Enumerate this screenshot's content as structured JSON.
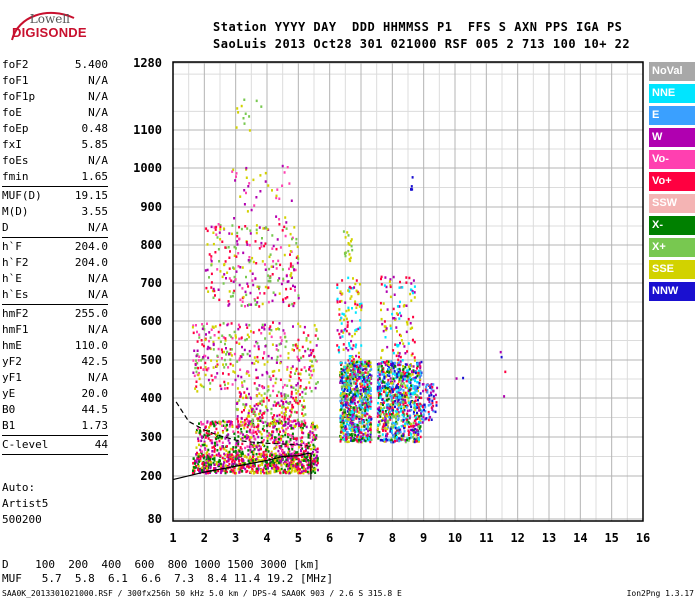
{
  "logo": {
    "line1": "Lowell",
    "line2": "DIGISONDE"
  },
  "header": {
    "line1": "Station YYYY DAY  DDD HHMMSS P1  FFS S AXN PPS IGA PS",
    "line2": "SaoLuis 2013 Oct28 301 021000 RSF 005 2 713 100 10+ 22"
  },
  "params": [
    [
      [
        "foF2",
        "5.400"
      ],
      [
        "foF1",
        "N/A"
      ],
      [
        "foF1p",
        "N/A"
      ],
      [
        "foE",
        "N/A"
      ],
      [
        "foEp",
        "0.48"
      ],
      [
        "fxI",
        "5.85"
      ],
      [
        "foEs",
        "N/A"
      ],
      [
        "fmin",
        "1.65"
      ]
    ],
    [
      [
        "MUF(D)",
        "19.15"
      ],
      [
        "M(D)",
        "3.55"
      ],
      [
        "D",
        "N/A"
      ]
    ],
    [
      [
        "h`F",
        "204.0"
      ],
      [
        "h`F2",
        "204.0"
      ],
      [
        "h`E",
        "N/A"
      ],
      [
        "h`Es",
        "N/A"
      ]
    ],
    [
      [
        "hmF2",
        "255.0"
      ],
      [
        "hmF1",
        "N/A"
      ],
      [
        "hmE",
        "110.0"
      ],
      [
        "yF2",
        "42.5"
      ],
      [
        "yF1",
        "N/A"
      ],
      [
        "yE",
        "20.0"
      ],
      [
        "B0",
        "44.5"
      ],
      [
        "B1",
        "1.73"
      ]
    ],
    [
      [
        "C-level",
        "44"
      ]
    ]
  ],
  "auto": {
    "l1": "Auto:",
    "l2": "Artist5",
    "l3": "500200"
  },
  "legend": [
    {
      "label": "NoVal",
      "color": "#a8a8a8"
    },
    {
      "label": "NNE",
      "color": "#00e5ff"
    },
    {
      "label": "E",
      "color": "#3aa0ff"
    },
    {
      "label": "W",
      "color": "#b000b0"
    },
    {
      "label": "Vo-",
      "color": "#ff40b0"
    },
    {
      "label": "Vo+",
      "color": "#ff0040"
    },
    {
      "label": "SSW",
      "color": "#f4b4b4"
    },
    {
      "label": "X-",
      "color": "#008000"
    },
    {
      "label": "X+",
      "color": "#78c850"
    },
    {
      "label": "SSE",
      "color": "#d2d200"
    },
    {
      "label": "NNW",
      "color": "#1a10d0"
    }
  ],
  "bottom": {
    "d_row": "D    100  200  400  600  800 1000 1500 3000 [km]",
    "muf_row": "MUF   5.7  5.8  6.1  6.6  7.3  8.4 11.4 19.2 [MHz]"
  },
  "footer": {
    "left": "SAA0K_2013301021000.RSF / 300fx256h 50 kHz 5.0 km / DPS-4 SAA0K 903 / 2.6 S 315.8 E",
    "right": "Ion2Png 1.3.17"
  },
  "chart_data": {
    "type": "scatter",
    "x_ticks": [
      1,
      2,
      3,
      4,
      5,
      6,
      7,
      8,
      9,
      10,
      11,
      12,
      13,
      14,
      15,
      16
    ],
    "y_ticks": [
      80,
      200,
      300,
      400,
      500,
      600,
      700,
      800,
      900,
      1000,
      1100,
      1280
    ],
    "xlim": [
      1,
      16
    ],
    "ylim": [
      80,
      1280
    ],
    "grid": true,
    "trace_curve": {
      "x": [
        1.0,
        2.0,
        3.0,
        4.0,
        4.5,
        5.0,
        5.3,
        5.4,
        5.4
      ],
      "y": [
        190,
        210,
        225,
        240,
        250,
        252,
        258,
        258,
        190
      ]
    },
    "profile_curve": {
      "x": [
        1.1,
        1.5,
        2.0,
        2.5,
        3.0,
        3.5,
        4.0,
        4.5,
        5.0,
        5.4
      ],
      "y": [
        390,
        340,
        318,
        303,
        292,
        287,
        284,
        282,
        280,
        276
      ]
    },
    "echo_clusters": [
      {
        "x": [
          1.6,
          5.6
        ],
        "y": [
          210,
          260
        ],
        "n": 700,
        "colors": [
          "#ff0040",
          "#008000",
          "#d2d200",
          "#b000b0"
        ]
      },
      {
        "x": [
          1.7,
          5.6
        ],
        "y": [
          255,
          345
        ],
        "n": 550,
        "colors": [
          "#ff40b0",
          "#ff0040",
          "#b000b0",
          "#d2d200",
          "#008000"
        ]
      },
      {
        "x": [
          3.0,
          5.2
        ],
        "y": [
          330,
          420
        ],
        "n": 220,
        "colors": [
          "#ff0040",
          "#b000b0",
          "#d2d200",
          "#78c850"
        ]
      },
      {
        "x": [
          1.6,
          5.6
        ],
        "y": [
          420,
          600
        ],
        "n": 380,
        "colors": [
          "#ff0040",
          "#b000b0",
          "#ff40b0",
          "#d2d200",
          "#78c850"
        ]
      },
      {
        "x": [
          2.0,
          5.0
        ],
        "y": [
          640,
          860
        ],
        "n": 260,
        "colors": [
          "#ff0040",
          "#b000b0",
          "#ff40b0",
          "#d2d200",
          "#78c850"
        ]
      },
      {
        "x": [
          2.8,
          4.8
        ],
        "y": [
          860,
          1010
        ],
        "n": 40,
        "colors": [
          "#d2d200",
          "#ff40b0",
          "#b000b0"
        ]
      },
      {
        "x": [
          2.9,
          3.8
        ],
        "y": [
          1080,
          1200
        ],
        "n": 12,
        "colors": [
          "#d2d200",
          "#78c850"
        ]
      },
      {
        "x": [
          6.3,
          7.3
        ],
        "y": [
          290,
          500
        ],
        "n": 850,
        "colors": [
          "#3aa0ff",
          "#00e5ff",
          "#ff0040",
          "#b000b0",
          "#d2d200",
          "#008000",
          "#1a10d0",
          "#78c850"
        ]
      },
      {
        "x": [
          6.2,
          7.0
        ],
        "y": [
          500,
          720
        ],
        "n": 110,
        "colors": [
          "#ff0040",
          "#b000b0",
          "#d2d200",
          "#00e5ff"
        ]
      },
      {
        "x": [
          7.5,
          8.9
        ],
        "y": [
          290,
          500
        ],
        "n": 850,
        "colors": [
          "#3aa0ff",
          "#00e5ff",
          "#ff0040",
          "#b000b0",
          "#d2d200",
          "#008000",
          "#1a10d0",
          "#78c850"
        ]
      },
      {
        "x": [
          7.6,
          8.7
        ],
        "y": [
          500,
          720
        ],
        "n": 110,
        "colors": [
          "#ff0040",
          "#b000b0",
          "#d2d200",
          "#00e5ff"
        ]
      },
      {
        "x": [
          8.9,
          9.4
        ],
        "y": [
          340,
          440
        ],
        "n": 70,
        "colors": [
          "#3aa0ff",
          "#1a10d0",
          "#ff0040",
          "#b000b0"
        ]
      },
      {
        "x": [
          6.4,
          6.7
        ],
        "y": [
          760,
          840
        ],
        "n": 20,
        "colors": [
          "#d2d200",
          "#78c850"
        ]
      },
      {
        "x": [
          8.55,
          8.65
        ],
        "y": [
          940,
          980
        ],
        "n": 5,
        "colors": [
          "#1a10d0"
        ]
      },
      {
        "x": [
          10.0,
          11.6
        ],
        "y": [
          390,
          550
        ],
        "n": 6,
        "colors": [
          "#ff0040",
          "#1a10d0",
          "#b000b0"
        ]
      }
    ]
  }
}
